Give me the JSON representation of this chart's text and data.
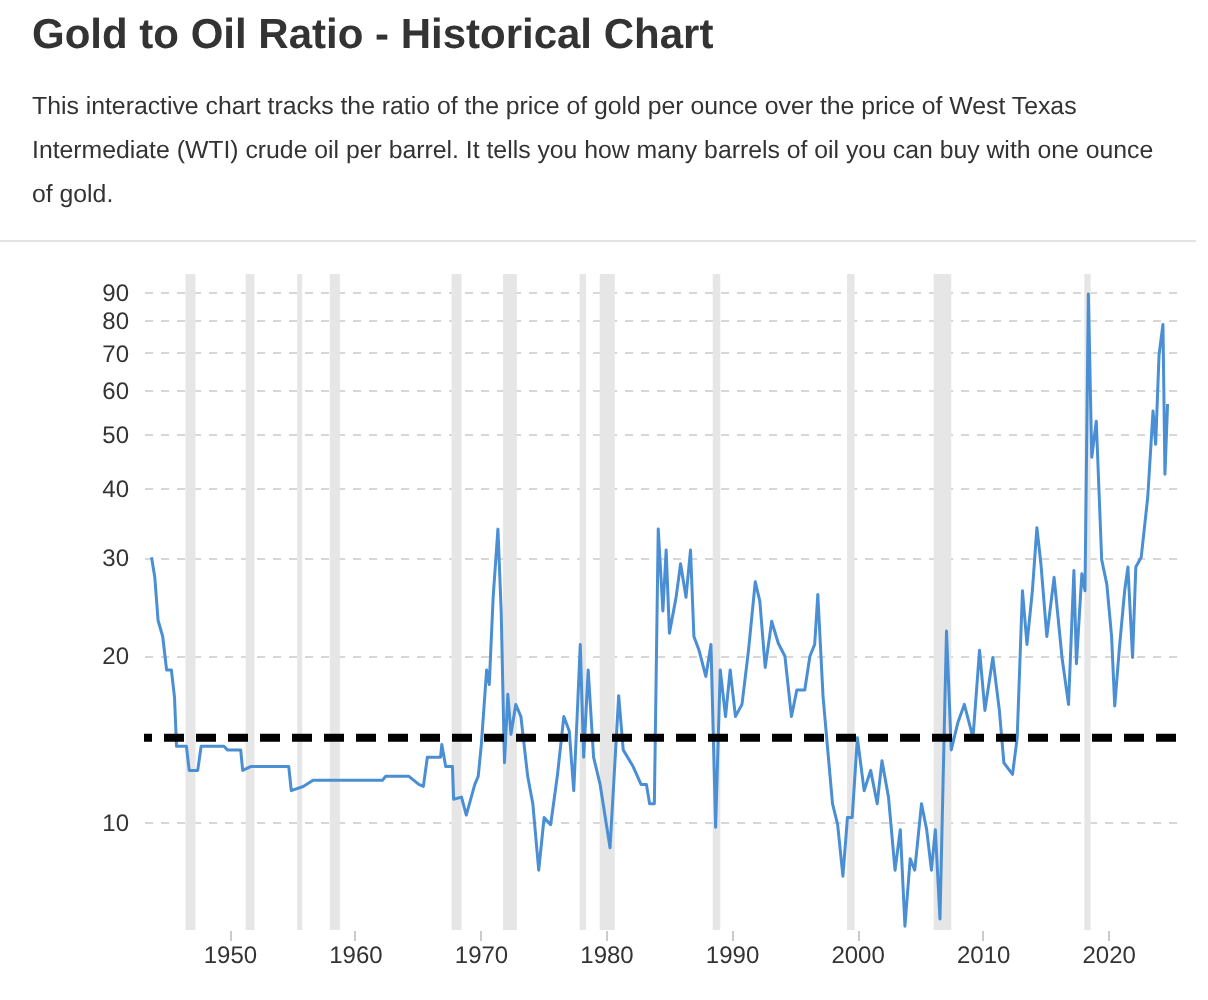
{
  "chart_data": {
    "type": "line",
    "title": "Gold to Oil Ratio - Historical Chart",
    "subtitle": "This interactive chart tracks the ratio of the price of gold per ounce over the price of West Texas Intermediate (WTI) crude oil per barrel. It tells you how many barrels of oil you can buy with one ounce of gold.",
    "x": [
      1943.8,
      1944.06,
      1944.32,
      1944.69,
      1945.0,
      1945.38,
      1945.63,
      1945.79,
      1946.58,
      1946.8,
      1947.48,
      1947.75,
      1949.57,
      1949.84,
      1950.9,
      1951.06,
      1951.69,
      1954.73,
      1954.93,
      1955.88,
      1956.67,
      1962.19,
      1962.45,
      1964.3,
      1965.09,
      1965.45,
      1965.77,
      1966.82,
      1966.92,
      1967.23,
      1967.77,
      1967.86,
      1968.49,
      1968.87,
      1969.55,
      1969.82,
      1970.07,
      1970.49,
      1970.7,
      1971.01,
      1971.39,
      1971.65,
      1971.91,
      1972.18,
      1972.43,
      1972.81,
      1973.22,
      1973.76,
      1974.17,
      1974.64,
      1975.07,
      1975.59,
      1976.12,
      1976.64,
      1977.07,
      1977.43,
      1977.7,
      1977.95,
      1978.22,
      1978.58,
      1979.01,
      1979.53,
      1980.32,
      1980.69,
      1981.01,
      1981.37,
      1982.16,
      1982.79,
      1983.22,
      1983.47,
      1983.85,
      1984.16,
      1984.53,
      1984.79,
      1985.05,
      1985.58,
      1985.94,
      1986.37,
      1986.73,
      1987.0,
      1987.41,
      1987.95,
      1988.36,
      1988.73,
      1989.1,
      1989.52,
      1989.89,
      1990.31,
      1990.83,
      1991.35,
      1991.89,
      1992.25,
      1992.68,
      1993.2,
      1993.72,
      1994.25,
      1994.77,
      1995.2,
      1995.83,
      1996.24,
      1996.62,
      1996.87,
      1997.29,
      1997.66,
      1998.04,
      1998.45,
      1998.87,
      1999.23,
      1999.61,
      2000.02,
      2000.56,
      2001.08,
      2001.6,
      2001.98,
      2002.5,
      2003.02,
      2003.44,
      2003.81,
      2004.23,
      2004.59,
      2005.13,
      2005.54,
      2005.92,
      2006.23,
      2006.6,
      2007.12,
      2007.5,
      2008.02,
      2008.54,
      2009.23,
      2009.75,
      2010.18,
      2010.81,
      2011.33,
      2011.69,
      2012.38,
      2012.75,
      2013.17,
      2013.53,
      2013.96,
      2014.32,
      2014.64,
      2015.11,
      2015.69,
      2016.32,
      2016.84,
      2017.27,
      2017.47,
      2017.9,
      2018.15,
      2018.42,
      2018.69,
      2019.05,
      2019.48,
      2019.89,
      2020.27,
      2020.52,
      2020.9,
      2021.31,
      2021.57,
      2021.94,
      2022.2,
      2022.63,
      2023.15,
      2023.57,
      2023.78,
      2024.05,
      2024.36,
      2024.52,
      2024.73
    ],
    "series": [
      {
        "color": "#4a8fd4",
        "values": [
          30.0,
          27.6,
          23.1,
          21.6,
          18.8,
          18.8,
          16.8,
          13.7,
          13.7,
          12.4,
          12.4,
          13.7,
          13.7,
          13.5,
          13.5,
          12.4,
          12.6,
          12.6,
          11.4,
          11.6,
          11.9,
          11.9,
          12.1,
          12.1,
          11.7,
          11.6,
          13.1,
          13.1,
          13.8,
          12.6,
          12.6,
          11.0,
          11.1,
          10.3,
          11.7,
          12.1,
          13.8,
          18.8,
          17.7,
          25.4,
          33.7,
          24.0,
          12.8,
          17.0,
          14.4,
          16.3,
          15.5,
          12.1,
          10.8,
          8.2,
          10.2,
          9.9,
          12.1,
          15.5,
          14.6,
          11.4,
          15.5,
          20.9,
          13.1,
          18.8,
          13.1,
          11.7,
          9.0,
          12.6,
          16.9,
          13.5,
          12.6,
          11.7,
          11.7,
          10.8,
          10.8,
          33.7,
          24.0,
          30.9,
          21.9,
          25.4,
          29.2,
          25.4,
          30.9,
          21.6,
          20.4,
          18.3,
          20.9,
          9.8,
          18.8,
          15.5,
          18.8,
          15.5,
          16.3,
          20.4,
          27.1,
          25.0,
          19.0,
          23.0,
          21.0,
          19.9,
          15.5,
          17.3,
          17.3,
          19.9,
          20.9,
          25.7,
          16.8,
          13.5,
          10.8,
          9.9,
          8.0,
          10.2,
          10.2,
          14.2,
          11.4,
          12.4,
          10.8,
          12.9,
          11.1,
          8.2,
          9.7,
          6.5,
          8.6,
          8.2,
          10.8,
          9.7,
          8.2,
          9.7,
          6.7,
          22.1,
          13.5,
          15.1,
          16.3,
          14.2,
          20.4,
          15.9,
          19.8,
          15.9,
          12.8,
          12.2,
          14.2,
          26.1,
          20.9,
          26.1,
          33.9,
          29.2,
          21.6,
          27.6,
          19.8,
          16.3,
          28.4,
          19.3,
          28.0,
          26.1,
          89.3,
          45.4,
          52.7,
          29.7,
          26.8,
          21.6,
          16.2,
          20.7,
          26.1,
          28.8,
          19.8,
          28.8,
          30.0,
          38.5,
          55.0,
          47.9,
          69.4,
          78.7,
          42.3,
          56.6
        ]
      }
    ],
    "xlim": [
      1943.2,
      2025.4
    ],
    "xticks": [
      1950,
      1960,
      1970,
      1980,
      1990,
      2000,
      2010,
      2020
    ],
    "ylim": [
      6.4,
      97
    ],
    "yticks": [
      10,
      20,
      30,
      40,
      50,
      60,
      70,
      80,
      90
    ],
    "log": "y",
    "grid": "y",
    "marker": "none",
    "line_style": "solid",
    "ref_lines": [
      {
        "axis": "y",
        "value": 14.2,
        "color": "#000000",
        "line_style": "dashed"
      }
    ],
    "bands": [
      {
        "axis": "x",
        "from": 1946.5,
        "to": 1947.3,
        "color": "#e6e6e6"
      },
      {
        "axis": "x",
        "from": 1951.3,
        "to": 1952.0,
        "color": "#e6e6e6"
      },
      {
        "axis": "x",
        "from": 1955.4,
        "to": 1955.8,
        "color": "#e6e6e6"
      },
      {
        "axis": "x",
        "from": 1958.0,
        "to": 1958.8,
        "color": "#e6e6e6"
      },
      {
        "axis": "x",
        "from": 1967.7,
        "to": 1968.5,
        "color": "#e6e6e6"
      },
      {
        "axis": "x",
        "from": 1971.8,
        "to": 1972.9,
        "color": "#e6e6e6"
      },
      {
        "axis": "x",
        "from": 1977.9,
        "to": 1978.4,
        "color": "#e6e6e6"
      },
      {
        "axis": "x",
        "from": 1979.5,
        "to": 1980.7,
        "color": "#e6e6e6"
      },
      {
        "axis": "x",
        "from": 1988.5,
        "to": 1989.1,
        "color": "#e6e6e6"
      },
      {
        "axis": "x",
        "from": 1999.2,
        "to": 1999.8,
        "color": "#e6e6e6"
      },
      {
        "axis": "x",
        "from": 2006.1,
        "to": 2007.5,
        "color": "#e6e6e6"
      },
      {
        "axis": "x",
        "from": 2018.1,
        "to": 2018.6,
        "color": "#e6e6e6"
      }
    ]
  }
}
